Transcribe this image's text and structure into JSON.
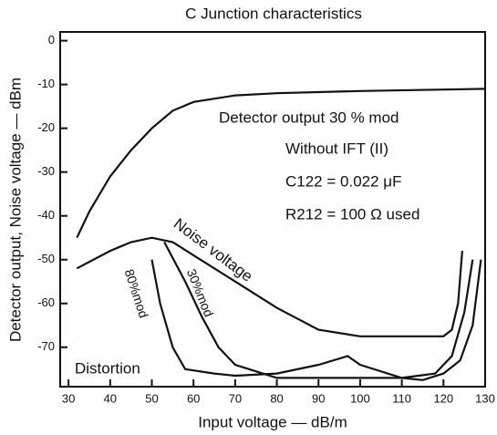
{
  "chart_data": {
    "type": "line",
    "title": "C Junction characteristics",
    "x_label": "Input voltage — dB/m",
    "y_label": "Detector output, Noise voltage — dBm",
    "xlim": [
      28,
      130
    ],
    "xticks": [
      30,
      40,
      50,
      60,
      70,
      80,
      90,
      100,
      110,
      120,
      130
    ],
    "ylim": [
      -79,
      2
    ],
    "yticks": [
      0,
      -10,
      -20,
      -30,
      -40,
      -50,
      -60,
      -70
    ],
    "grid": false,
    "annotations": [
      "Without IFT (II)",
      "C122 = 0.022 μF",
      "R212 = 100 Ω used",
      "Distortion"
    ],
    "series": [
      {
        "name": "Detector output 30 % mod",
        "color": "#111111",
        "x": [
          32,
          35,
          40,
          45,
          50,
          55,
          60,
          70,
          80,
          100,
          130
        ],
        "values": [
          -45,
          -39,
          -31,
          -25,
          -20,
          -16,
          -14,
          -12.5,
          -12,
          -11.5,
          -11
        ]
      },
      {
        "name": "Noise voltage",
        "color": "#111111",
        "x": [
          32,
          40,
          45,
          50,
          55,
          60,
          70,
          80,
          90,
          100,
          110,
          120,
          122,
          123.5,
          124.5
        ],
        "values": [
          -52,
          -48,
          -46,
          -45,
          -46,
          -49,
          -55,
          -61,
          -66,
          -67.5,
          -67.5,
          -67.5,
          -66,
          -60,
          -48
        ]
      },
      {
        "name": "30%mod",
        "color": "#111111",
        "x": [
          53,
          58,
          62,
          66,
          70,
          80,
          90,
          100,
          110,
          118,
          122,
          125,
          127
        ],
        "values": [
          -46,
          -55,
          -63,
          -70,
          -74,
          -77,
          -77,
          -77,
          -77,
          -76,
          -72,
          -62,
          -50
        ]
      },
      {
        "name": "80%mod",
        "color": "#111111",
        "x": [
          50,
          52,
          55,
          58,
          65,
          70,
          80,
          90,
          97,
          100,
          110,
          115,
          120,
          124,
          127,
          129
        ],
        "values": [
          -50,
          -60,
          -70,
          -75,
          -76,
          -76.5,
          -76,
          -74,
          -72,
          -74,
          -77,
          -77.5,
          -76,
          -73,
          -65,
          -50
        ]
      }
    ]
  }
}
